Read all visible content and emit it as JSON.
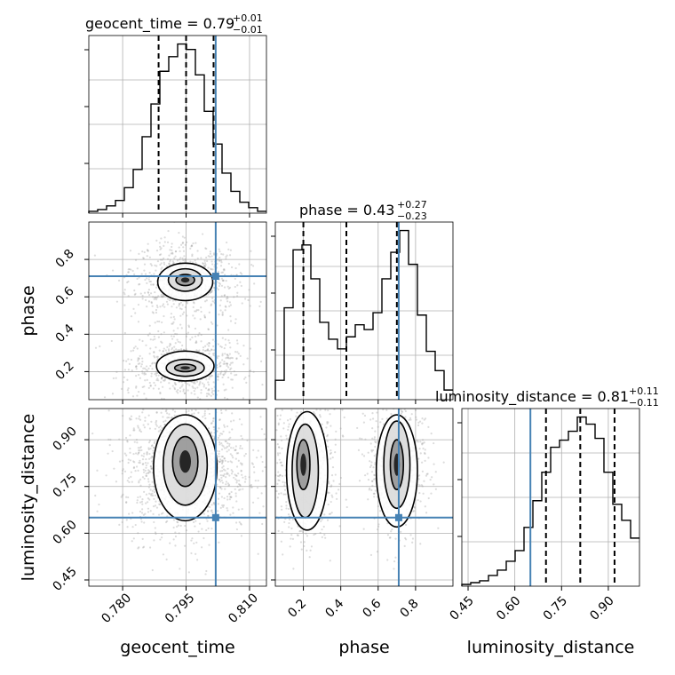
{
  "chart_data": {
    "type": "corner",
    "params": [
      "geocent_time",
      "phase",
      "luminosity_distance"
    ],
    "truths": [
      0.802,
      0.71,
      0.65
    ],
    "titles": [
      {
        "param": "geocent_time",
        "text": "geocent_time = 0.79",
        "sup": "+0.01",
        "sub": "−0.01"
      },
      {
        "param": "phase",
        "text": "phase = 0.43",
        "sup": "+0.27",
        "sub": "−0.23"
      },
      {
        "param": "luminosity_distance",
        "text": "luminosity_distance = 0.81",
        "sup": "+0.11",
        "sub": "−0.11"
      }
    ],
    "axes": {
      "geocent_time": {
        "range": [
          0.772,
          0.814
        ],
        "ticks": [
          0.78,
          0.795,
          0.81
        ],
        "tick_labels": [
          "0.780",
          "0.795",
          "0.810"
        ]
      },
      "phase": {
        "range": [
          0.05,
          1.0
        ],
        "ticks": [
          0.2,
          0.4,
          0.6,
          0.8
        ],
        "tick_labels": [
          "0.2",
          "0.4",
          "0.6",
          "0.8"
        ]
      },
      "luminosity_distance": {
        "range": [
          0.43,
          1.0
        ],
        "ticks": [
          0.45,
          0.6,
          0.75,
          0.9
        ],
        "tick_labels": [
          "0.45",
          "0.60",
          "0.75",
          "0.90"
        ]
      }
    },
    "quantiles": {
      "geocent_time": [
        0.7885,
        0.795,
        0.8015
      ],
      "phase": [
        0.2,
        0.43,
        0.7
      ],
      "luminosity_distance": [
        0.7,
        0.81,
        0.92
      ]
    },
    "hist_geocent_time": {
      "edges_start": 0.772,
      "bin_width": 0.0021,
      "counts": [
        1,
        2,
        4,
        7,
        14,
        24,
        42,
        60,
        78,
        86,
        93,
        90,
        76,
        56,
        38,
        22,
        12,
        6,
        3,
        1
      ]
    },
    "hist_phase": {
      "edges_start": 0.05,
      "bin_width": 0.0475,
      "counts": [
        8,
        38,
        62,
        64,
        50,
        32,
        25,
        21,
        26,
        31,
        29,
        36,
        50,
        61,
        70,
        56,
        35,
        20,
        12,
        4
      ]
    },
    "hist_luminosity_distance": {
      "edges_start": 0.43,
      "bin_width": 0.0285,
      "counts": [
        1,
        2,
        3,
        6,
        9,
        14,
        20,
        33,
        48,
        64,
        78,
        82,
        87,
        95,
        91,
        83,
        64,
        46,
        37,
        27
      ]
    },
    "grid": true
  }
}
